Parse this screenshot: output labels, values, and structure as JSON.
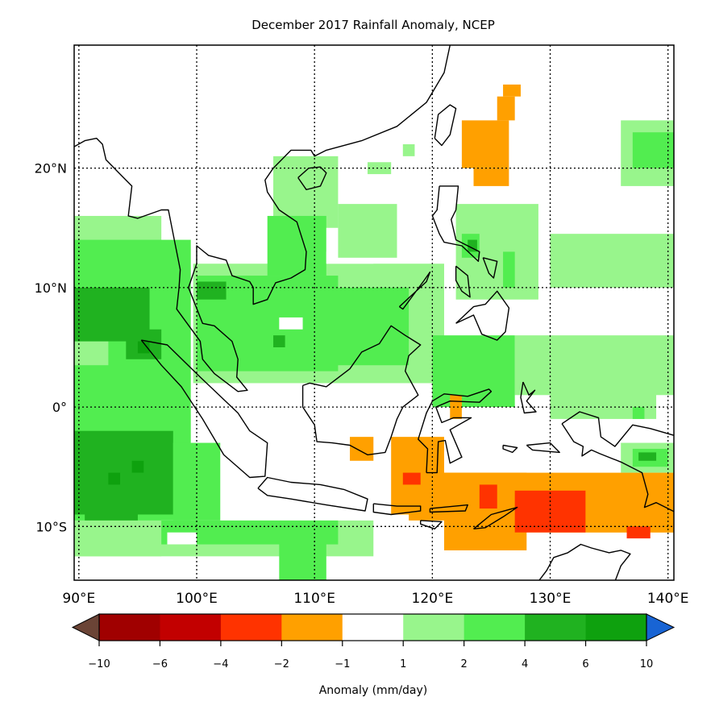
{
  "chart_data": {
    "type": "heatmap",
    "title": "December 2017 Rainfall Anomaly, NCEP",
    "xlabel": "",
    "ylabel": "",
    "xlim": [
      89.6,
      140.5
    ],
    "ylim": [
      -14.5,
      30.3
    ],
    "grid": true,
    "x_ticks": [
      {
        "value": 90,
        "label": "90°E"
      },
      {
        "value": 100,
        "label": "100°E"
      },
      {
        "value": 110,
        "label": "110°E"
      },
      {
        "value": 120,
        "label": "120°E"
      },
      {
        "value": 130,
        "label": "130°E"
      },
      {
        "value": 140,
        "label": "140°E"
      }
    ],
    "y_ticks": [
      {
        "value": 20,
        "label": "20°N"
      },
      {
        "value": 10,
        "label": "10°N"
      },
      {
        "value": 0,
        "label": "0°"
      },
      {
        "value": -10,
        "label": "10°S"
      }
    ],
    "colorbar": {
      "label": "Anomaly (mm/day)",
      "boundaries": [
        "−10",
        "−6",
        "−4",
        "−2",
        "−1",
        "1",
        "2",
        "4",
        "6",
        "10"
      ],
      "colors": [
        "#a00000",
        "#c20000",
        "#ff3300",
        "#ffa000",
        "#ffffff",
        "#98f58c",
        "#52ed50",
        "#20b220",
        "#0ea10e"
      ],
      "under_color": "#6b4436",
      "over_color": "#1864d4"
    },
    "cells_note_units": "lon0, lat0, lon1, lat1, color-bin index",
    "cells": [
      [
        89.6,
        -12.5,
        97,
        16,
        5
      ],
      [
        89.6,
        -9.5,
        99.5,
        14,
        6
      ],
      [
        89.6,
        3.5,
        92.5,
        5.5,
        5
      ],
      [
        89.6,
        5.5,
        96,
        10,
        7
      ],
      [
        94,
        4,
        97,
        6.5,
        7
      ],
      [
        89.6,
        -9,
        98,
        -2,
        7
      ],
      [
        90.5,
        -9.5,
        95,
        -7.5,
        7
      ],
      [
        95,
        4.5,
        96,
        5.5,
        8
      ],
      [
        94.5,
        -5.5,
        95.5,
        -4.5,
        8
      ],
      [
        92.5,
        -6.5,
        93.5,
        -5.5,
        8
      ],
      [
        89.6,
        -12.5,
        115,
        -9.5,
        5
      ],
      [
        97,
        -11.5,
        112,
        -9.5,
        6
      ],
      [
        97.5,
        -11.5,
        100,
        -10.5,
        4
      ],
      [
        107,
        -14.5,
        111,
        -11,
        6
      ],
      [
        98,
        -9.5,
        102,
        -3,
        6
      ],
      [
        99.7,
        2,
        121,
        12,
        5
      ],
      [
        100,
        3,
        112,
        11,
        6
      ],
      [
        103,
        3.5,
        118,
        10,
        6
      ],
      [
        107,
        6.5,
        109,
        7.5,
        4
      ],
      [
        100,
        9,
        102.5,
        10.5,
        7
      ],
      [
        106.5,
        5,
        107.5,
        6,
        7
      ],
      [
        106.5,
        13,
        112,
        21,
        5
      ],
      [
        106,
        11,
        111,
        16,
        6
      ],
      [
        111,
        12,
        115,
        15,
        4
      ],
      [
        112,
        12.5,
        117,
        17,
        5
      ],
      [
        114.5,
        19.5,
        116.5,
        20.5,
        5
      ],
      [
        117.5,
        21,
        118.5,
        22,
        5
      ],
      [
        122,
        9,
        129,
        17,
        5
      ],
      [
        122.5,
        12.5,
        124,
        14.5,
        6
      ],
      [
        123,
        13,
        123.8,
        14,
        7
      ],
      [
        126,
        10,
        127,
        13,
        6
      ],
      [
        122.5,
        20,
        126.5,
        24,
        3
      ],
      [
        123.5,
        18.5,
        126.5,
        20,
        3
      ],
      [
        125.5,
        24,
        127,
        26,
        3
      ],
      [
        126,
        26,
        127.5,
        27,
        3
      ],
      [
        130,
        10,
        140.5,
        14.5,
        5
      ],
      [
        136,
        18.5,
        140.5,
        24,
        5
      ],
      [
        137,
        20,
        140.5,
        23,
        6
      ],
      [
        127,
        1,
        140.5,
        6,
        5
      ],
      [
        120,
        0,
        127,
        6,
        6
      ],
      [
        130,
        -1,
        139,
        1.5,
        5
      ],
      [
        137,
        -1,
        138,
        0,
        6
      ],
      [
        136,
        -5.5,
        140.5,
        -3,
        5
      ],
      [
        137,
        -5,
        140,
        -3.5,
        6
      ],
      [
        137.5,
        -4.5,
        139,
        -3.8,
        7
      ],
      [
        121.5,
        -1,
        122.5,
        1,
        3
      ],
      [
        116.5,
        -9,
        121,
        -2.5,
        3
      ],
      [
        118,
        -9.5,
        126,
        -5.5,
        3
      ],
      [
        121,
        -12,
        128,
        -5.5,
        3
      ],
      [
        126,
        -10.5,
        140.5,
        -5.5,
        3
      ],
      [
        130,
        -10.5,
        140.5,
        -8.5,
        3
      ],
      [
        113,
        -4.5,
        115,
        -2.5,
        3
      ],
      [
        117.5,
        -6.5,
        119,
        -5.5,
        2
      ],
      [
        124,
        -8.5,
        125.5,
        -6.5,
        2
      ],
      [
        127,
        -10.5,
        133,
        -7,
        2
      ],
      [
        136.5,
        -11,
        138.5,
        -10,
        2
      ]
    ]
  }
}
